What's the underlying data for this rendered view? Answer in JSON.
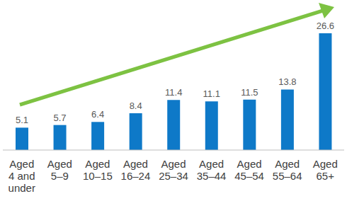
{
  "chart_data": {
    "type": "bar",
    "categories": [
      "Aged 4 and under",
      "Aged 5–9",
      "Aged 10–15",
      "Aged 16–24",
      "Aged 25–34",
      "Aged 35–44",
      "Aged 45–54",
      "Aged 55–64",
      "Aged 65+"
    ],
    "values": [
      5.1,
      5.7,
      6.4,
      8.4,
      11.4,
      11.1,
      11.5,
      13.8,
      26.6
    ],
    "color": "#0e79c8",
    "data_labels": true,
    "tick_labels": "x",
    "grid": false
  }
}
